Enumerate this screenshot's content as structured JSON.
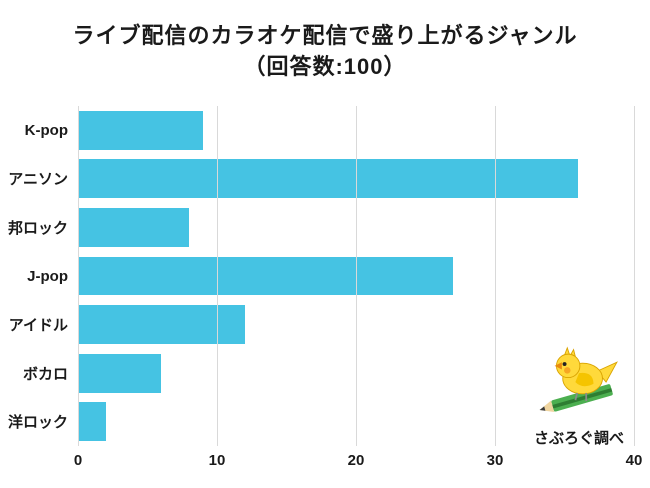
{
  "chart_data": {
    "type": "bar",
    "orientation": "horizontal",
    "title_line1": "ライブ配信のカラオケ配信で盛り上がるジャンル",
    "title_line2": "（回答数:100）",
    "categories": [
      "K-pop",
      "アニソン",
      "邦ロック",
      "J-pop",
      "アイドル",
      "ボカロ",
      "洋ロック"
    ],
    "values": [
      9,
      36,
      8,
      27,
      12,
      6,
      2
    ],
    "xlabel": "",
    "ylabel": "",
    "xlim": [
      0,
      40
    ],
    "xticks": [
      0,
      10,
      20,
      30,
      40
    ],
    "grid": true,
    "legend": false,
    "bar_color": "#45c3e3",
    "grid_color": "#d9d9d9",
    "annotation": "さぶろぐ調べ"
  },
  "icons": {
    "mascot": "bird-with-pencil-icon"
  }
}
